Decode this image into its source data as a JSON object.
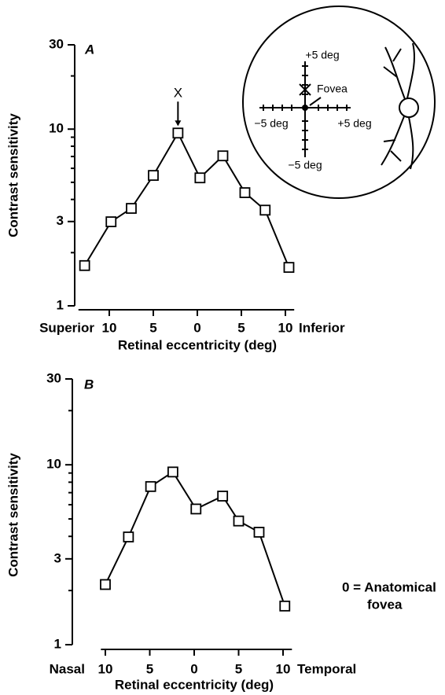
{
  "chart_data": [
    {
      "type": "line",
      "panel_label": "A",
      "y_label": "Contrast sensitivity",
      "x_label": "Retinal eccentricity (deg)",
      "left_label": "Superior",
      "right_label": "Inferior",
      "color": "#000000",
      "log_y": true,
      "x": [
        -12.8,
        -9.8,
        -7.5,
        -5,
        -2.2,
        0.3,
        2.9,
        5.4,
        7.7,
        10.4
      ],
      "values": [
        1.69,
        2.99,
        3.56,
        5.47,
        9.5,
        5.3,
        7.06,
        4.37,
        3.48,
        1.65
      ],
      "xlim": [
        -13.5,
        11
      ],
      "xticks": [
        {
          "value": -10,
          "label": "10"
        },
        {
          "value": -5,
          "label": "5"
        },
        0,
        {
          "value": 5,
          "label": "5"
        },
        10
      ],
      "ylim": [
        1,
        30
      ],
      "yticks": [
        1,
        3,
        10,
        30
      ],
      "yminor": [
        2,
        4,
        5,
        6,
        7,
        8,
        9,
        20
      ],
      "marker_label": "X",
      "inset": {
        "up": "+5 deg",
        "fovea": "Fovea",
        "left": "−5 deg",
        "right": "+5 deg",
        "down": "−5 deg"
      }
    },
    {
      "type": "line",
      "panel_label": "B",
      "y_label": "Contrast sensitivity",
      "x_label": "Retinal eccentricity (deg)",
      "left_label": "Nasal",
      "right_label": "Temporal",
      "color": "#000000",
      "log_y": true,
      "x": [
        -10,
        -7.4,
        -4.9,
        -2.4,
        0.2,
        3.2,
        5.0,
        7.3,
        10.2
      ],
      "values": [
        2.16,
        3.97,
        7.57,
        9.12,
        5.68,
        6.7,
        4.87,
        4.22,
        1.64
      ],
      "xlim": [
        -10.5,
        11
      ],
      "xticks": [
        {
          "value": -10,
          "label": "10"
        },
        {
          "value": -5,
          "label": "5"
        },
        0,
        {
          "value": 5,
          "label": "5"
        },
        10
      ],
      "ylim": [
        1,
        30
      ],
      "yticks": [
        1,
        3,
        10,
        30
      ],
      "yminor": [
        2,
        4,
        5,
        6,
        7,
        8,
        9,
        20
      ],
      "note": [
        "0 = Anatomical",
        "fovea"
      ]
    }
  ]
}
